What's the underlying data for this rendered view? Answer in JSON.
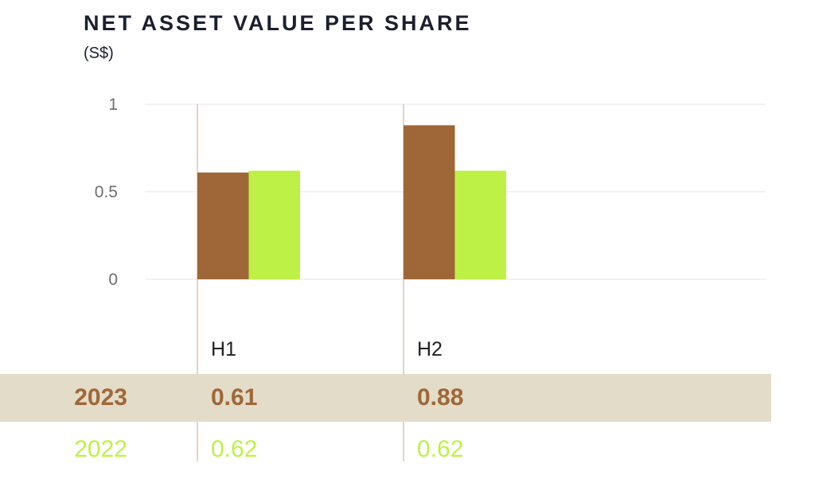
{
  "header": {
    "title": "NET ASSET VALUE PER SHARE",
    "unit": "(S$)"
  },
  "chart_data": {
    "type": "bar",
    "categories": [
      "H1",
      "H2"
    ],
    "series": [
      {
        "name": "2023",
        "values": [
          0.61,
          0.88
        ],
        "color": "#9f6738"
      },
      {
        "name": "2022",
        "values": [
          0.62,
          0.62
        ],
        "color": "#bdf145"
      }
    ],
    "ylim": [
      0,
      1
    ],
    "yticks": [
      "0",
      "0.5",
      "1"
    ],
    "grid": true
  },
  "table": {
    "rows": [
      {
        "year": "2023",
        "h1": "0.61",
        "h2": "0.88"
      },
      {
        "year": "2022",
        "h1": "0.62",
        "h2": "0.62"
      }
    ]
  }
}
